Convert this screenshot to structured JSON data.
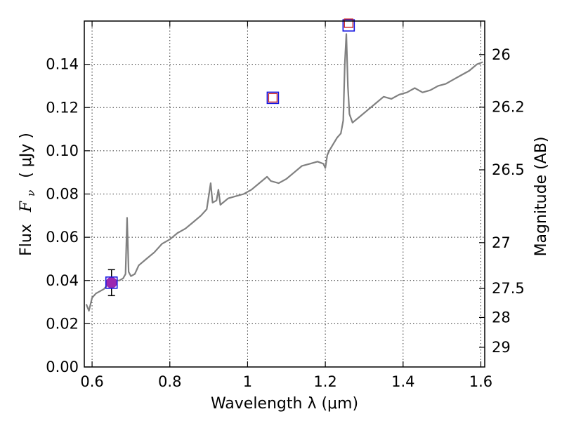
{
  "chart_data": {
    "type": "line",
    "xlabel": "Wavelength  λ (μm)",
    "ylabel": "Flux  Fν  ( μJy )",
    "ylabel_parts": {
      "prefix": "Flux",
      "var": "F",
      "sub": "ν",
      "unit": "( μJy )"
    },
    "y2label": "Magnitude (AB)",
    "xlim": [
      0.58,
      1.61
    ],
    "ylim": [
      0.0,
      0.16
    ],
    "grid": true,
    "x_ticks": [
      0.6,
      0.8,
      1.0,
      1.2,
      1.4,
      1.6
    ],
    "x_tick_labels": [
      "0.6",
      "0.8",
      "1",
      "1.2",
      "1.4",
      "1.6"
    ],
    "y_ticks": [
      0.0,
      0.02,
      0.04,
      0.06,
      0.08,
      0.1,
      0.12,
      0.14
    ],
    "y_tick_labels": [
      "0.00",
      "0.02",
      "0.04",
      "0.06",
      "0.08",
      "0.10",
      "0.12",
      "0.14"
    ],
    "y2_ticks": [
      {
        "label": "26",
        "flux": 0.1445
      },
      {
        "label": "26.2",
        "flux": 0.1202
      },
      {
        "label": "26.5",
        "flux": 0.0912
      },
      {
        "label": "27",
        "flux": 0.0575
      },
      {
        "label": "27.5",
        "flux": 0.0363
      },
      {
        "label": "28",
        "flux": 0.0229
      },
      {
        "label": "29",
        "flux": 0.0091
      }
    ],
    "series": [
      {
        "color": "#808080",
        "points": [
          [
            0.585,
            0.029
          ],
          [
            0.592,
            0.026
          ],
          [
            0.6,
            0.032
          ],
          [
            0.61,
            0.034
          ],
          [
            0.62,
            0.035
          ],
          [
            0.63,
            0.036
          ],
          [
            0.64,
            0.038
          ],
          [
            0.65,
            0.039
          ],
          [
            0.66,
            0.04
          ],
          [
            0.67,
            0.04
          ],
          [
            0.68,
            0.041
          ],
          [
            0.686,
            0.043
          ],
          [
            0.69,
            0.069
          ],
          [
            0.694,
            0.044
          ],
          [
            0.7,
            0.042
          ],
          [
            0.71,
            0.043
          ],
          [
            0.72,
            0.047
          ],
          [
            0.74,
            0.05
          ],
          [
            0.76,
            0.053
          ],
          [
            0.78,
            0.057
          ],
          [
            0.8,
            0.059
          ],
          [
            0.82,
            0.062
          ],
          [
            0.84,
            0.064
          ],
          [
            0.86,
            0.067
          ],
          [
            0.88,
            0.07
          ],
          [
            0.895,
            0.073
          ],
          [
            0.9,
            0.079
          ],
          [
            0.905,
            0.085
          ],
          [
            0.91,
            0.076
          ],
          [
            0.92,
            0.077
          ],
          [
            0.925,
            0.082
          ],
          [
            0.93,
            0.075
          ],
          [
            0.95,
            0.078
          ],
          [
            0.97,
            0.079
          ],
          [
            0.99,
            0.08
          ],
          [
            1.01,
            0.082
          ],
          [
            1.03,
            0.085
          ],
          [
            1.05,
            0.088
          ],
          [
            1.06,
            0.086
          ],
          [
            1.08,
            0.085
          ],
          [
            1.1,
            0.087
          ],
          [
            1.12,
            0.09
          ],
          [
            1.14,
            0.093
          ],
          [
            1.16,
            0.094
          ],
          [
            1.18,
            0.095
          ],
          [
            1.195,
            0.094
          ],
          [
            1.2,
            0.092
          ],
          [
            1.205,
            0.098
          ],
          [
            1.21,
            0.1
          ],
          [
            1.22,
            0.103
          ],
          [
            1.23,
            0.106
          ],
          [
            1.24,
            0.108
          ],
          [
            1.246,
            0.114
          ],
          [
            1.25,
            0.14
          ],
          [
            1.254,
            0.154
          ],
          [
            1.258,
            0.13
          ],
          [
            1.262,
            0.117
          ],
          [
            1.27,
            0.113
          ],
          [
            1.29,
            0.116
          ],
          [
            1.31,
            0.119
          ],
          [
            1.33,
            0.122
          ],
          [
            1.35,
            0.125
          ],
          [
            1.37,
            0.124
          ],
          [
            1.39,
            0.126
          ],
          [
            1.41,
            0.127
          ],
          [
            1.43,
            0.129
          ],
          [
            1.45,
            0.127
          ],
          [
            1.47,
            0.128
          ],
          [
            1.49,
            0.13
          ],
          [
            1.51,
            0.131
          ],
          [
            1.53,
            0.133
          ],
          [
            1.55,
            0.135
          ],
          [
            1.57,
            0.137
          ],
          [
            1.59,
            0.14
          ],
          [
            1.605,
            0.141
          ]
        ]
      }
    ],
    "markers": [
      {
        "shape": "filled-circle",
        "color": "#9b27b0",
        "x": 0.65,
        "y": 0.039
      },
      {
        "shape": "open-square",
        "color": "#1515e0",
        "x": 0.65,
        "y": 0.039
      },
      {
        "shape": "open-square",
        "color": "#1515e0",
        "x": 1.065,
        "y": 0.1245
      },
      {
        "shape": "open-square",
        "color": "#1515e0",
        "x": 1.26,
        "y": 0.158
      },
      {
        "shape": "open-square-small",
        "color": "#cc2222",
        "x": 1.065,
        "y": 0.1245
      },
      {
        "shape": "open-square-small",
        "color": "#cc2222",
        "x": 1.26,
        "y": 0.159
      }
    ],
    "errorbars": [
      {
        "x": 0.65,
        "y": 0.039,
        "ylow": 0.033,
        "yhigh": 0.045,
        "color": "#000000"
      }
    ]
  }
}
